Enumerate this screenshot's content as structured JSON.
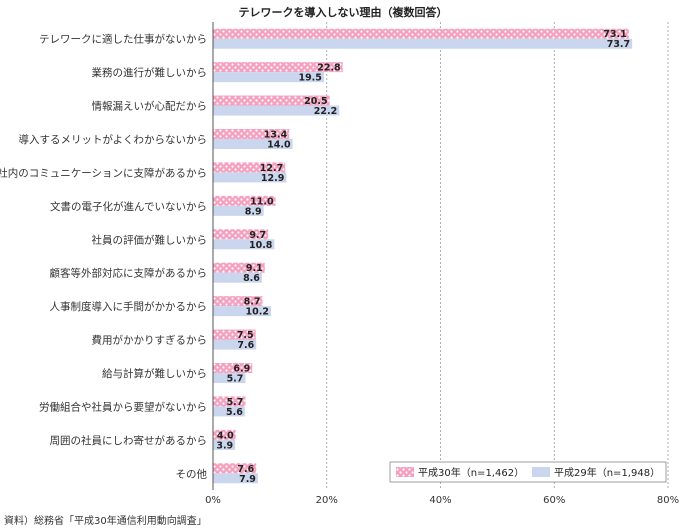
{
  "chart_data": {
    "type": "bar",
    "orientation": "horizontal",
    "title": "テレワークを導入しない理由（複数回答）",
    "categories": [
      "テレワークに適した仕事がないから",
      "業務の進行が難しいから",
      "情報漏えいが心配だから",
      "導入するメリットがよくわからないから",
      "社内のコミュニケーションに支障があるから",
      "文書の電子化が進んでいないから",
      "社員の評価が難しいから",
      "顧客等外部対応に支障があるから",
      "人事制度導入に手間がかかるから",
      "費用がかかりすぎるから",
      "給与計算が難しいから",
      "労働組合や社員から要望がないから",
      "周囲の社員にしわ寄せがあるから",
      "その他"
    ],
    "series": [
      {
        "name": "平成30年（n=1,462）",
        "values": [
          73.1,
          22.8,
          20.5,
          13.4,
          12.7,
          11.0,
          9.7,
          9.1,
          8.7,
          7.5,
          6.9,
          5.7,
          4.0,
          7.6
        ]
      },
      {
        "name": "平成29年（n=1,948）",
        "values": [
          73.7,
          19.5,
          22.2,
          14.0,
          12.9,
          8.9,
          10.8,
          8.6,
          10.2,
          7.6,
          5.7,
          5.6,
          3.9,
          7.9
        ]
      }
    ],
    "value_labels": [
      [
        "73.1",
        "22.8",
        "20.5",
        "13.4",
        "12.7",
        "11.0",
        "9.7",
        "9.1",
        "8.7",
        "7.5",
        "6.9",
        "5.7",
        "4.0",
        "7.6"
      ],
      [
        "73.7",
        "19.5",
        "22.2",
        "14.0",
        "12.9",
        "8.9",
        "10.8",
        "8.6",
        "10.2",
        "7.6",
        "5.7",
        "5.6",
        "3.9",
        "7.9"
      ]
    ],
    "xlim": [
      0,
      80
    ],
    "xticks": [
      0,
      20,
      40,
      60,
      80
    ],
    "xtick_labels": [
      "0%",
      "20%",
      "40%",
      "60%",
      "80%"
    ],
    "grid": "vertical dashed",
    "legend_position": "bottom-right",
    "colors": {
      "series_2018": "#f4a0be",
      "series_2018_dots": "#ffffff",
      "series_2017": "#c9d6ee",
      "grid": "#999999",
      "axis": "#555555"
    }
  },
  "footer": {
    "source": "資料）総務省「平成30年通信利用動向調査」"
  }
}
